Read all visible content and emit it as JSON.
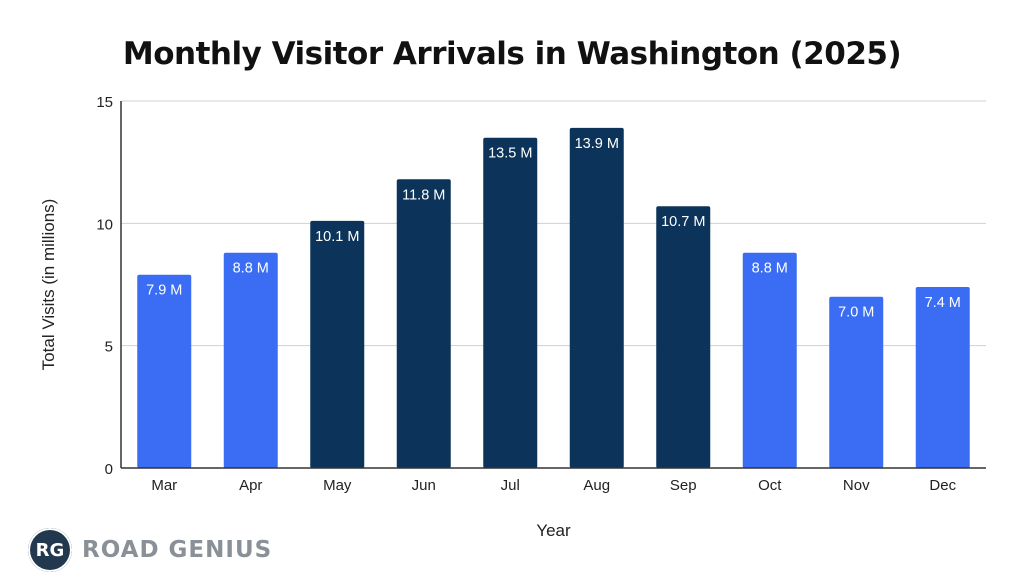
{
  "chart_data": {
    "type": "bar",
    "title": "Monthly Visitor Arrivals in Washington (2025)",
    "xlabel": "Year",
    "ylabel": "Total Visits (in millions)",
    "ylim": [
      0,
      15
    ],
    "yticks": [
      0,
      5,
      10,
      15
    ],
    "grid": true,
    "categories": [
      "Mar",
      "Apr",
      "May",
      "Jun",
      "Jul",
      "Aug",
      "Sep",
      "Oct",
      "Nov",
      "Dec"
    ],
    "values": [
      7.9,
      8.8,
      10.1,
      11.8,
      13.5,
      13.9,
      10.7,
      8.8,
      7.0,
      7.4
    ],
    "data_labels": [
      "7.9 M",
      "8.8 M",
      "10.1 M",
      "11.8 M",
      "13.5 M",
      "13.9 M",
      "10.7 M",
      "8.8 M",
      "7.0 M",
      "7.4 M"
    ],
    "bar_colors": [
      "#3a6cf4",
      "#3a6cf4",
      "#0c3359",
      "#0c3359",
      "#0c3359",
      "#0c3359",
      "#0c3359",
      "#3a6cf4",
      "#3a6cf4",
      "#3a6cf4"
    ]
  },
  "logo": {
    "initials": "RG",
    "name": "ROAD GENIUS"
  }
}
